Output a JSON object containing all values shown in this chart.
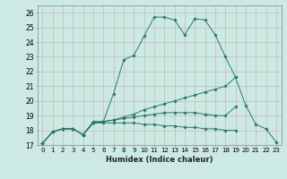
{
  "xlabel": "Humidex (Indice chaleur)",
  "background_color": "#cce9e4",
  "grid_color": "#b0c8c4",
  "line_color": "#2a7a6a",
  "xlim": [
    -0.5,
    23.5
  ],
  "ylim": [
    17,
    26.5
  ],
  "xticks": [
    0,
    1,
    2,
    3,
    4,
    5,
    6,
    7,
    8,
    9,
    10,
    11,
    12,
    13,
    14,
    15,
    16,
    17,
    18,
    19,
    20,
    21,
    22,
    23
  ],
  "yticks": [
    17,
    18,
    19,
    20,
    21,
    22,
    23,
    24,
    25,
    26
  ],
  "series": [
    [
      17.1,
      17.9,
      18.1,
      18.1,
      17.7,
      18.6,
      18.6,
      20.5,
      22.8,
      23.1,
      24.4,
      25.7,
      25.7,
      25.5,
      24.5,
      25.6,
      25.5,
      24.5,
      23.0,
      21.6,
      19.7,
      18.4,
      18.1,
      17.2
    ],
    [
      17.1,
      17.9,
      18.1,
      18.1,
      17.7,
      18.5,
      18.6,
      18.7,
      18.9,
      19.1,
      19.4,
      19.6,
      19.8,
      20.0,
      20.2,
      20.4,
      20.6,
      20.8,
      21.0,
      21.6,
      null,
      null,
      null,
      null
    ],
    [
      17.1,
      17.9,
      18.1,
      18.1,
      17.7,
      18.5,
      18.6,
      18.7,
      18.8,
      18.9,
      19.0,
      19.1,
      19.2,
      19.2,
      19.2,
      19.2,
      19.1,
      19.0,
      19.0,
      19.6,
      null,
      null,
      null,
      null
    ],
    [
      17.1,
      17.9,
      18.1,
      18.1,
      17.7,
      18.5,
      18.5,
      18.5,
      18.5,
      18.5,
      18.4,
      18.4,
      18.3,
      18.3,
      18.2,
      18.2,
      18.1,
      18.1,
      18.0,
      18.0,
      null,
      null,
      null,
      null
    ]
  ]
}
